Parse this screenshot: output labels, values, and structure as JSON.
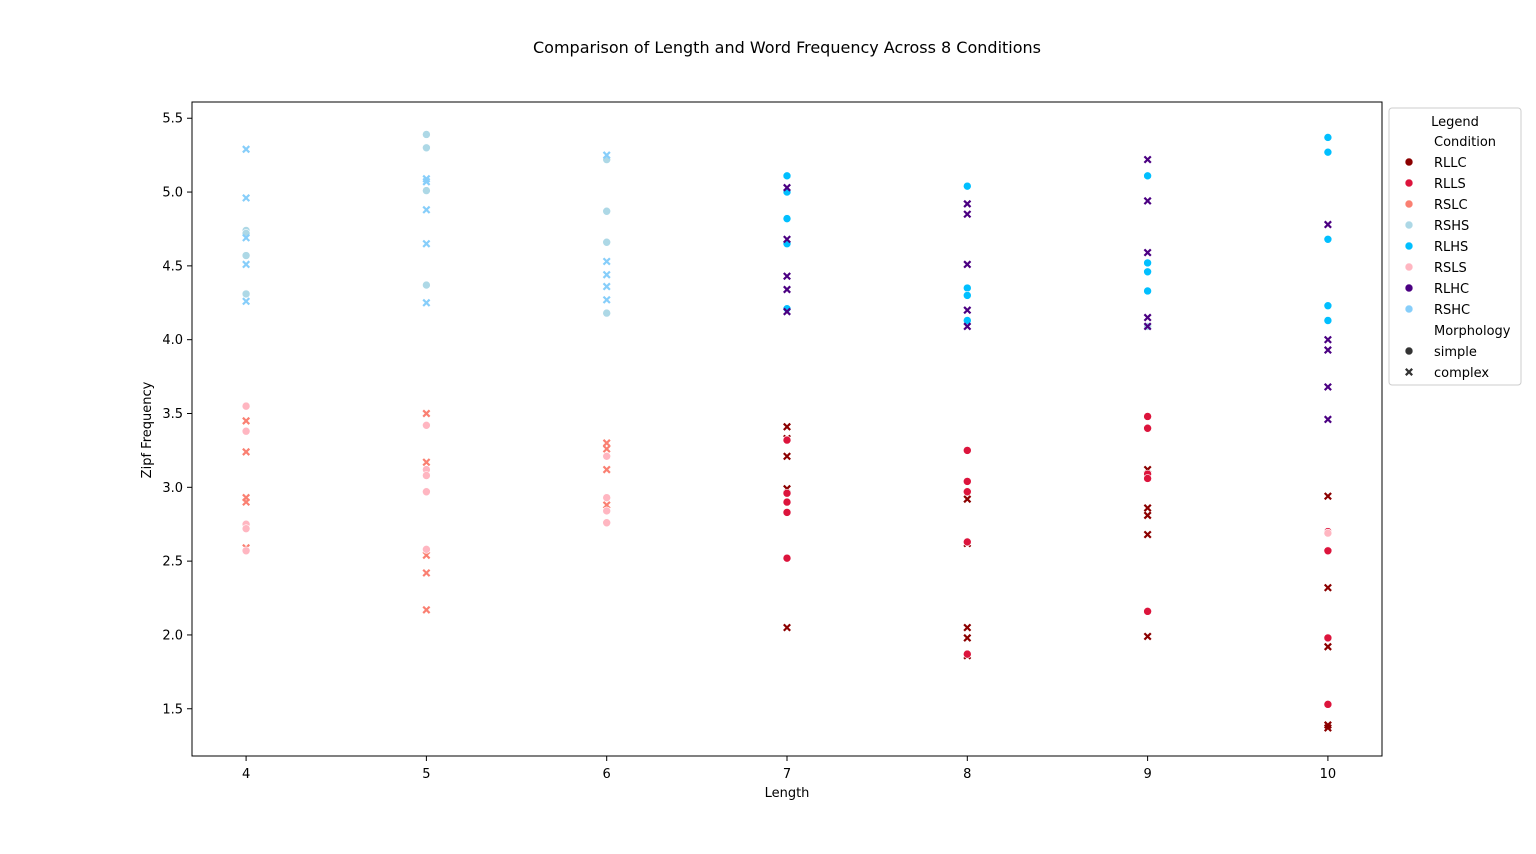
{
  "chart_data": {
    "type": "scatter",
    "title": "Comparison of Length and Word Frequency Across 8 Conditions",
    "xlabel": "Length",
    "ylabel": "Zipf Frequency",
    "xlim": [
      3.7,
      10.3
    ],
    "ylim": [
      1.18,
      5.61
    ],
    "x_ticks": [
      4,
      5,
      6,
      7,
      8,
      9,
      10
    ],
    "y_ticks": [
      "1.5",
      "2.0",
      "2.5",
      "3.0",
      "3.5",
      "4.0",
      "4.5",
      "5.0",
      "5.5"
    ],
    "grid": false,
    "legend": {
      "placement": "outside-right-top",
      "title": "Legend",
      "condition_heading": "Condition",
      "morphology_heading": "Morphology",
      "morphology_items": [
        {
          "label": "simple",
          "marker": "circle"
        },
        {
          "label": "complex",
          "marker": "x"
        }
      ]
    },
    "series": [
      {
        "name": "RLLC",
        "color": "#8b0000",
        "points": [
          {
            "x": 7,
            "y": 3.41,
            "m": "x"
          },
          {
            "x": 7,
            "y": 3.33,
            "m": "x"
          },
          {
            "x": 7,
            "y": 3.21,
            "m": "x"
          },
          {
            "x": 7,
            "y": 2.99,
            "m": "x"
          },
          {
            "x": 7,
            "y": 2.05,
            "m": "x"
          },
          {
            "x": 8,
            "y": 2.92,
            "m": "x"
          },
          {
            "x": 8,
            "y": 2.62,
            "m": "x"
          },
          {
            "x": 8,
            "y": 2.05,
            "m": "x"
          },
          {
            "x": 8,
            "y": 1.98,
            "m": "x"
          },
          {
            "x": 8,
            "y": 1.86,
            "m": "x"
          },
          {
            "x": 9,
            "y": 3.12,
            "m": "x"
          },
          {
            "x": 9,
            "y": 2.86,
            "m": "x"
          },
          {
            "x": 9,
            "y": 2.81,
            "m": "x"
          },
          {
            "x": 9,
            "y": 2.68,
            "m": "x"
          },
          {
            "x": 9,
            "y": 1.99,
            "m": "x"
          },
          {
            "x": 10,
            "y": 2.94,
            "m": "x"
          },
          {
            "x": 10,
            "y": 2.32,
            "m": "x"
          },
          {
            "x": 10,
            "y": 1.92,
            "m": "x"
          },
          {
            "x": 10,
            "y": 1.39,
            "m": "x"
          },
          {
            "x": 10,
            "y": 1.37,
            "m": "x"
          }
        ]
      },
      {
        "name": "RLLS",
        "color": "#dc143c",
        "points": [
          {
            "x": 7,
            "y": 3.32,
            "m": "o"
          },
          {
            "x": 7,
            "y": 2.96,
            "m": "o"
          },
          {
            "x": 7,
            "y": 2.9,
            "m": "o"
          },
          {
            "x": 7,
            "y": 2.83,
            "m": "o"
          },
          {
            "x": 7,
            "y": 2.52,
            "m": "o"
          },
          {
            "x": 8,
            "y": 3.25,
            "m": "o"
          },
          {
            "x": 8,
            "y": 3.04,
            "m": "o"
          },
          {
            "x": 8,
            "y": 2.97,
            "m": "o"
          },
          {
            "x": 8,
            "y": 2.63,
            "m": "o"
          },
          {
            "x": 8,
            "y": 1.87,
            "m": "o"
          },
          {
            "x": 9,
            "y": 3.48,
            "m": "o"
          },
          {
            "x": 9,
            "y": 3.4,
            "m": "o"
          },
          {
            "x": 9,
            "y": 3.09,
            "m": "o"
          },
          {
            "x": 9,
            "y": 3.06,
            "m": "o"
          },
          {
            "x": 9,
            "y": 2.16,
            "m": "o"
          },
          {
            "x": 10,
            "y": 2.7,
            "m": "o"
          },
          {
            "x": 10,
            "y": 2.57,
            "m": "o"
          },
          {
            "x": 10,
            "y": 1.98,
            "m": "o"
          },
          {
            "x": 10,
            "y": 1.53,
            "m": "o"
          }
        ]
      },
      {
        "name": "RSLC",
        "color": "#fa8072",
        "points": [
          {
            "x": 4,
            "y": 3.45,
            "m": "x"
          },
          {
            "x": 4,
            "y": 3.24,
            "m": "x"
          },
          {
            "x": 4,
            "y": 2.93,
            "m": "x"
          },
          {
            "x": 4,
            "y": 2.9,
            "m": "x"
          },
          {
            "x": 4,
            "y": 2.59,
            "m": "x"
          },
          {
            "x": 5,
            "y": 3.5,
            "m": "x"
          },
          {
            "x": 5,
            "y": 3.17,
            "m": "x"
          },
          {
            "x": 5,
            "y": 2.54,
            "m": "x"
          },
          {
            "x": 5,
            "y": 2.42,
            "m": "x"
          },
          {
            "x": 5,
            "y": 2.17,
            "m": "x"
          },
          {
            "x": 6,
            "y": 3.3,
            "m": "x"
          },
          {
            "x": 6,
            "y": 3.26,
            "m": "x"
          },
          {
            "x": 6,
            "y": 3.12,
            "m": "x"
          },
          {
            "x": 6,
            "y": 2.88,
            "m": "x"
          }
        ]
      },
      {
        "name": "RSHS",
        "color": "#add8e6",
        "points": [
          {
            "x": 4,
            "y": 4.74,
            "m": "o"
          },
          {
            "x": 4,
            "y": 4.72,
            "m": "o"
          },
          {
            "x": 4,
            "y": 4.57,
            "m": "o"
          },
          {
            "x": 4,
            "y": 4.31,
            "m": "o"
          },
          {
            "x": 5,
            "y": 5.39,
            "m": "o"
          },
          {
            "x": 5,
            "y": 5.3,
            "m": "o"
          },
          {
            "x": 5,
            "y": 5.01,
            "m": "o"
          },
          {
            "x": 5,
            "y": 4.37,
            "m": "o"
          },
          {
            "x": 6,
            "y": 5.22,
            "m": "o"
          },
          {
            "x": 6,
            "y": 4.87,
            "m": "o"
          },
          {
            "x": 6,
            "y": 4.66,
            "m": "o"
          },
          {
            "x": 6,
            "y": 4.18,
            "m": "o"
          },
          {
            "x": 9,
            "y": 4.09,
            "m": "o"
          }
        ]
      },
      {
        "name": "RLHS",
        "color": "#00bfff",
        "points": [
          {
            "x": 7,
            "y": 5.11,
            "m": "o"
          },
          {
            "x": 7,
            "y": 5.0,
            "m": "o"
          },
          {
            "x": 7,
            "y": 4.82,
            "m": "o"
          },
          {
            "x": 7,
            "y": 4.65,
            "m": "o"
          },
          {
            "x": 7,
            "y": 4.21,
            "m": "o"
          },
          {
            "x": 8,
            "y": 5.04,
            "m": "o"
          },
          {
            "x": 8,
            "y": 4.35,
            "m": "o"
          },
          {
            "x": 8,
            "y": 4.3,
            "m": "o"
          },
          {
            "x": 8,
            "y": 4.13,
            "m": "o"
          },
          {
            "x": 9,
            "y": 5.11,
            "m": "o"
          },
          {
            "x": 9,
            "y": 4.52,
            "m": "o"
          },
          {
            "x": 9,
            "y": 4.46,
            "m": "o"
          },
          {
            "x": 9,
            "y": 4.33,
            "m": "o"
          },
          {
            "x": 10,
            "y": 5.37,
            "m": "o"
          },
          {
            "x": 10,
            "y": 5.27,
            "m": "o"
          },
          {
            "x": 10,
            "y": 4.68,
            "m": "o"
          },
          {
            "x": 10,
            "y": 4.23,
            "m": "o"
          },
          {
            "x": 10,
            "y": 4.13,
            "m": "o"
          }
        ]
      },
      {
        "name": "RSLS",
        "color": "#ffb6c1",
        "points": [
          {
            "x": 4,
            "y": 3.55,
            "m": "o"
          },
          {
            "x": 4,
            "y": 3.38,
            "m": "o"
          },
          {
            "x": 4,
            "y": 2.75,
            "m": "o"
          },
          {
            "x": 4,
            "y": 2.72,
            "m": "o"
          },
          {
            "x": 4,
            "y": 2.57,
            "m": "o"
          },
          {
            "x": 5,
            "y": 3.42,
            "m": "o"
          },
          {
            "x": 5,
            "y": 3.12,
            "m": "o"
          },
          {
            "x": 5,
            "y": 3.08,
            "m": "o"
          },
          {
            "x": 5,
            "y": 2.97,
            "m": "o"
          },
          {
            "x": 5,
            "y": 2.58,
            "m": "o"
          },
          {
            "x": 6,
            "y": 3.21,
            "m": "o"
          },
          {
            "x": 6,
            "y": 2.93,
            "m": "o"
          },
          {
            "x": 6,
            "y": 2.84,
            "m": "o"
          },
          {
            "x": 6,
            "y": 2.76,
            "m": "o"
          },
          {
            "x": 10,
            "y": 2.69,
            "m": "o"
          }
        ]
      },
      {
        "name": "RLHC",
        "color": "#4b0082",
        "points": [
          {
            "x": 7,
            "y": 5.03,
            "m": "x"
          },
          {
            "x": 7,
            "y": 4.68,
            "m": "x"
          },
          {
            "x": 7,
            "y": 4.43,
            "m": "x"
          },
          {
            "x": 7,
            "y": 4.34,
            "m": "x"
          },
          {
            "x": 7,
            "y": 4.19,
            "m": "x"
          },
          {
            "x": 8,
            "y": 4.92,
            "m": "x"
          },
          {
            "x": 8,
            "y": 4.85,
            "m": "x"
          },
          {
            "x": 8,
            "y": 4.51,
            "m": "x"
          },
          {
            "x": 8,
            "y": 4.2,
            "m": "x"
          },
          {
            "x": 8,
            "y": 4.09,
            "m": "x"
          },
          {
            "x": 9,
            "y": 5.22,
            "m": "x"
          },
          {
            "x": 9,
            "y": 4.94,
            "m": "x"
          },
          {
            "x": 9,
            "y": 4.59,
            "m": "x"
          },
          {
            "x": 9,
            "y": 4.15,
            "m": "x"
          },
          {
            "x": 9,
            "y": 4.09,
            "m": "x"
          },
          {
            "x": 10,
            "y": 4.78,
            "m": "x"
          },
          {
            "x": 10,
            "y": 4.0,
            "m": "x"
          },
          {
            "x": 10,
            "y": 3.93,
            "m": "x"
          },
          {
            "x": 10,
            "y": 3.68,
            "m": "x"
          },
          {
            "x": 10,
            "y": 3.46,
            "m": "x"
          }
        ]
      },
      {
        "name": "RSHC",
        "color": "#87cefa",
        "points": [
          {
            "x": 4,
            "y": 5.29,
            "m": "x"
          },
          {
            "x": 4,
            "y": 4.96,
            "m": "x"
          },
          {
            "x": 4,
            "y": 4.69,
            "m": "x"
          },
          {
            "x": 4,
            "y": 4.51,
            "m": "x"
          },
          {
            "x": 4,
            "y": 4.26,
            "m": "x"
          },
          {
            "x": 5,
            "y": 5.09,
            "m": "x"
          },
          {
            "x": 5,
            "y": 5.07,
            "m": "x"
          },
          {
            "x": 5,
            "y": 4.88,
            "m": "x"
          },
          {
            "x": 5,
            "y": 4.65,
            "m": "x"
          },
          {
            "x": 5,
            "y": 4.25,
            "m": "x"
          },
          {
            "x": 6,
            "y": 5.25,
            "m": "x"
          },
          {
            "x": 6,
            "y": 4.53,
            "m": "x"
          },
          {
            "x": 6,
            "y": 4.44,
            "m": "x"
          },
          {
            "x": 6,
            "y": 4.36,
            "m": "x"
          },
          {
            "x": 6,
            "y": 4.27,
            "m": "x"
          }
        ]
      }
    ]
  }
}
